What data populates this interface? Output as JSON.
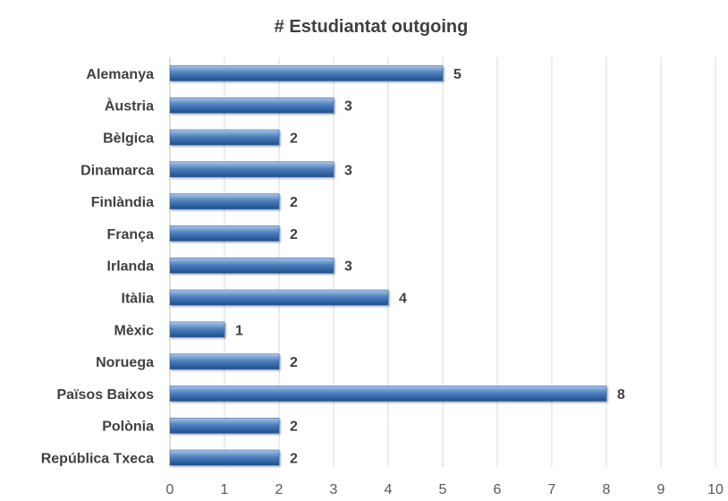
{
  "chart_data": {
    "type": "bar",
    "orientation": "horizontal",
    "title": "# Estudiantat outgoing",
    "xlabel": "",
    "ylabel": "",
    "categories": [
      "Alemanya",
      "Àustria",
      "Bèlgica",
      "Dinamarca",
      "Finlàndia",
      "França",
      "Irlanda",
      "Itàlia",
      "Mèxic",
      "Noruega",
      "Països Baixos",
      "Polònia",
      "República Txeca"
    ],
    "values": [
      5,
      3,
      2,
      3,
      2,
      2,
      3,
      4,
      1,
      2,
      8,
      2,
      2
    ],
    "xlim": [
      0,
      10
    ],
    "ticks": [
      "0",
      "1",
      "2",
      "3",
      "4",
      "5",
      "6",
      "7",
      "8",
      "9",
      "10"
    ],
    "grid": true,
    "legend": "none",
    "bar_color": "#4f81bd",
    "bar_highlight": "#a7c7ee",
    "bar_shadow": "#1f4e8c"
  }
}
